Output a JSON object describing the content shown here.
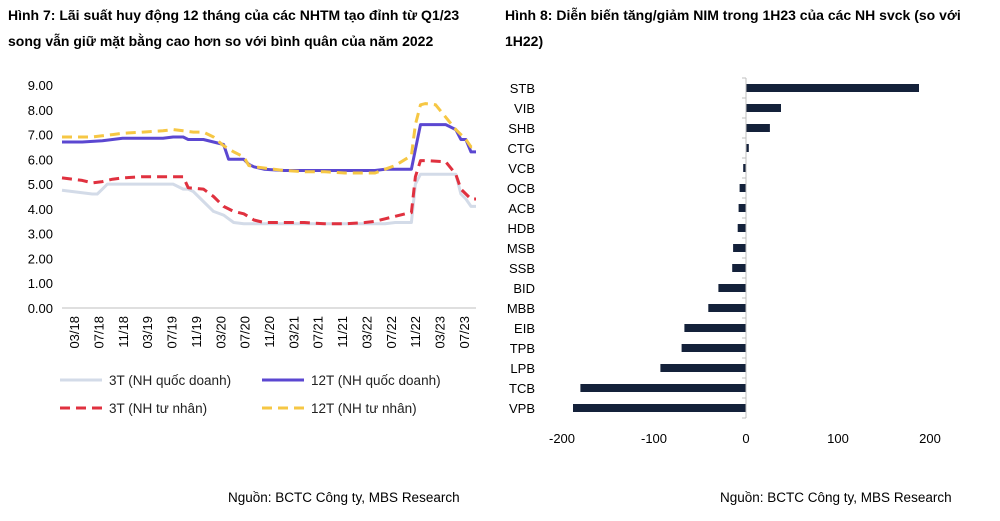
{
  "left": {
    "title": "Hình 7: Lãi suất huy động 12 tháng của các NHTM tạo đỉnh từ Q1/23 song vẫn giữ mặt bằng cao hơn so với bình quân của năm 2022",
    "source": "Nguồn: BCTC Công ty, MBS Research"
  },
  "right": {
    "title": "Hình 8: Diễn biến tăng/giảm NIM trong 1H23 của các NH svck (so với 1H22)",
    "source": "Nguồn: BCTC Công ty, MBS Research"
  },
  "colors": {
    "s3t_state": "#d3dbe8",
    "s12t_state": "#5b47d1",
    "s3t_private": "#e0313f",
    "s12t_private": "#f6c744",
    "bars": "#14213a"
  },
  "chart_data": [
    {
      "type": "line",
      "x_ticks": [
        "03/18",
        "07/18",
        "11/18",
        "03/19",
        "07/19",
        "11/19",
        "03/20",
        "07/20",
        "11/20",
        "03/21",
        "07/21",
        "11/21",
        "03/22",
        "07/22",
        "11/22",
        "03/23",
        "07/23"
      ],
      "ylim": [
        0,
        9
      ],
      "y_ticks": [
        "0.00",
        "1.00",
        "2.00",
        "3.00",
        "4.00",
        "5.00",
        "6.00",
        "7.00",
        "8.00",
        "9.00"
      ],
      "grid": false,
      "legend_position": "bottom",
      "series": [
        {
          "name": "3T (NH quốc doanh)",
          "style": "solid",
          "points": [
            [
              0,
              4.75
            ],
            [
              2,
              4.65
            ],
            [
              3,
              4.6
            ],
            [
              3.5,
              4.6
            ],
            [
              4,
              4.8
            ],
            [
              4.5,
              5.0
            ],
            [
              5,
              5.0
            ],
            [
              10,
              5.0
            ],
            [
              11,
              5.0
            ],
            [
              12,
              4.8
            ],
            [
              12.5,
              4.8
            ],
            [
              13,
              4.7
            ],
            [
              14,
              4.3
            ],
            [
              15,
              3.9
            ],
            [
              16,
              3.75
            ],
            [
              16.5,
              3.6
            ],
            [
              17,
              3.45
            ],
            [
              18,
              3.4
            ],
            [
              19,
              3.4
            ],
            [
              21,
              3.4
            ],
            [
              22,
              3.4
            ],
            [
              23,
              3.4
            ],
            [
              24,
              3.4
            ],
            [
              26,
              3.4
            ],
            [
              28,
              3.4
            ],
            [
              30,
              3.4
            ],
            [
              31,
              3.4
            ],
            [
              32,
              3.4
            ],
            [
              33,
              3.45
            ],
            [
              34,
              3.45
            ],
            [
              34.6,
              3.45
            ],
            [
              35,
              5.0
            ],
            [
              35.5,
              5.4
            ],
            [
              36,
              5.4
            ],
            [
              38,
              5.4
            ],
            [
              39,
              5.4
            ],
            [
              39.5,
              4.6
            ],
            [
              40,
              4.4
            ],
            [
              40.5,
              4.1
            ],
            [
              41,
              4.1
            ]
          ]
        },
        {
          "name": "12T (NH quốc doanh)",
          "style": "solid",
          "points": [
            [
              0,
              6.7
            ],
            [
              2,
              6.7
            ],
            [
              4,
              6.75
            ],
            [
              5,
              6.8
            ],
            [
              6,
              6.85
            ],
            [
              8,
              6.85
            ],
            [
              10,
              6.85
            ],
            [
              11,
              6.9
            ],
            [
              12,
              6.9
            ],
            [
              12.5,
              6.8
            ],
            [
              14,
              6.8
            ],
            [
              15,
              6.7
            ],
            [
              16,
              6.6
            ],
            [
              16.5,
              6.0
            ],
            [
              18,
              6.0
            ],
            [
              18.5,
              5.8
            ],
            [
              19,
              5.7
            ],
            [
              20,
              5.6
            ],
            [
              22,
              5.55
            ],
            [
              24,
              5.55
            ],
            [
              26,
              5.55
            ],
            [
              28,
              5.55
            ],
            [
              30,
              5.55
            ],
            [
              31,
              5.55
            ],
            [
              32,
              5.6
            ],
            [
              33,
              5.6
            ],
            [
              34,
              5.6
            ],
            [
              34.6,
              5.6
            ],
            [
              35,
              6.4
            ],
            [
              35.5,
              7.4
            ],
            [
              36,
              7.4
            ],
            [
              38,
              7.4
            ],
            [
              39,
              7.2
            ],
            [
              39.5,
              6.8
            ],
            [
              40,
              6.8
            ],
            [
              40.5,
              6.3
            ],
            [
              41,
              6.3
            ]
          ]
        },
        {
          "name": "3T (NH tư nhân)",
          "style": "dashed",
          "points": [
            [
              0,
              5.25
            ],
            [
              2,
              5.15
            ],
            [
              3,
              5.05
            ],
            [
              4,
              5.1
            ],
            [
              5,
              5.2
            ],
            [
              6,
              5.25
            ],
            [
              8,
              5.3
            ],
            [
              10,
              5.3
            ],
            [
              11,
              5.3
            ],
            [
              12,
              5.3
            ],
            [
              12.5,
              4.85
            ],
            [
              14,
              4.8
            ],
            [
              15,
              4.5
            ],
            [
              16,
              4.1
            ],
            [
              17,
              3.9
            ],
            [
              18,
              3.8
            ],
            [
              19,
              3.55
            ],
            [
              20,
              3.45
            ],
            [
              21,
              3.45
            ],
            [
              22,
              3.45
            ],
            [
              24,
              3.45
            ],
            [
              26,
              3.4
            ],
            [
              28,
              3.4
            ],
            [
              30,
              3.45
            ],
            [
              31,
              3.5
            ],
            [
              32,
              3.6
            ],
            [
              33,
              3.7
            ],
            [
              34,
              3.8
            ],
            [
              34.6,
              3.85
            ],
            [
              35,
              5.3
            ],
            [
              35.5,
              5.95
            ],
            [
              36,
              5.95
            ],
            [
              38,
              5.9
            ],
            [
              39,
              5.4
            ],
            [
              39.5,
              4.8
            ],
            [
              40,
              4.6
            ],
            [
              40.5,
              4.4
            ],
            [
              41,
              4.4
            ]
          ]
        },
        {
          "name": "12T (NH tư nhân)",
          "style": "dashed",
          "points": [
            [
              0,
              6.9
            ],
            [
              2,
              6.9
            ],
            [
              3,
              6.9
            ],
            [
              4,
              6.95
            ],
            [
              5,
              7.0
            ],
            [
              6,
              7.05
            ],
            [
              8,
              7.1
            ],
            [
              10,
              7.15
            ],
            [
              11,
              7.2
            ],
            [
              12,
              7.15
            ],
            [
              13,
              7.1
            ],
            [
              14,
              7.1
            ],
            [
              15,
              6.9
            ],
            [
              16,
              6.55
            ],
            [
              17,
              6.3
            ],
            [
              18,
              6.1
            ],
            [
              18.5,
              5.75
            ],
            [
              19,
              5.7
            ],
            [
              20,
              5.65
            ],
            [
              22,
              5.55
            ],
            [
              24,
              5.5
            ],
            [
              26,
              5.5
            ],
            [
              28,
              5.45
            ],
            [
              30,
              5.45
            ],
            [
              31,
              5.45
            ],
            [
              32,
              5.6
            ],
            [
              33,
              5.75
            ],
            [
              34,
              6.0
            ],
            [
              34.6,
              6.15
            ],
            [
              35,
              7.4
            ],
            [
              35.5,
              8.2
            ],
            [
              36,
              8.25
            ],
            [
              37,
              8.2
            ],
            [
              38,
              7.7
            ],
            [
              39,
              7.2
            ],
            [
              39.5,
              7.0
            ],
            [
              40,
              6.8
            ],
            [
              40.5,
              6.5
            ],
            [
              41,
              6.5
            ]
          ]
        }
      ]
    },
    {
      "type": "bar",
      "orientation": "horizontal",
      "categories": [
        "STB",
        "VIB",
        "SHB",
        "CTG",
        "VCB",
        "OCB",
        "ACB",
        "HDB",
        "MSB",
        "SSB",
        "BID",
        "MBB",
        "EIB",
        "TPB",
        "LPB",
        "TCB",
        "VPB"
      ],
      "values": [
        188,
        38,
        26,
        3,
        -3,
        -7,
        -8,
        -9,
        -14,
        -15,
        -30,
        -41,
        -67,
        -70,
        -93,
        -180,
        -188
      ],
      "xlim": [
        -200,
        200
      ],
      "x_ticks": [
        "-200",
        "-100",
        "0",
        "100",
        "200"
      ],
      "grid": false
    }
  ]
}
